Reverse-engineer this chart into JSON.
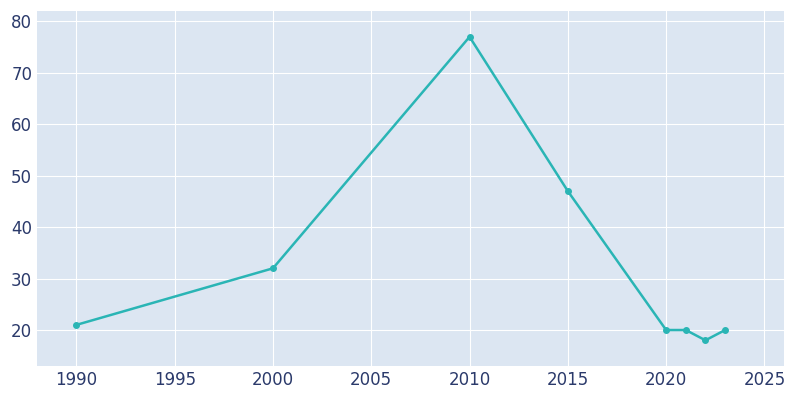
{
  "years": [
    1990,
    2000,
    2010,
    2015,
    2020,
    2021,
    2022,
    2023
  ],
  "population": [
    21,
    32,
    77,
    47,
    20,
    20,
    18,
    20
  ],
  "line_color": "#2ab5b5",
  "line_width": 1.8,
  "marker": "o",
  "marker_size": 4,
  "fig_bg_color": "#ffffff",
  "plot_bg_color": "#dce6f2",
  "grid_color": "#ffffff",
  "xlabel": "",
  "ylabel": "",
  "xlim": [
    1988,
    2026
  ],
  "ylim": [
    13,
    82
  ],
  "xticks": [
    1990,
    1995,
    2000,
    2005,
    2010,
    2015,
    2020,
    2025
  ],
  "yticks": [
    20,
    30,
    40,
    50,
    60,
    70,
    80
  ],
  "tick_color": "#2b3a6b",
  "tick_fontsize": 12,
  "spine_visible": false
}
